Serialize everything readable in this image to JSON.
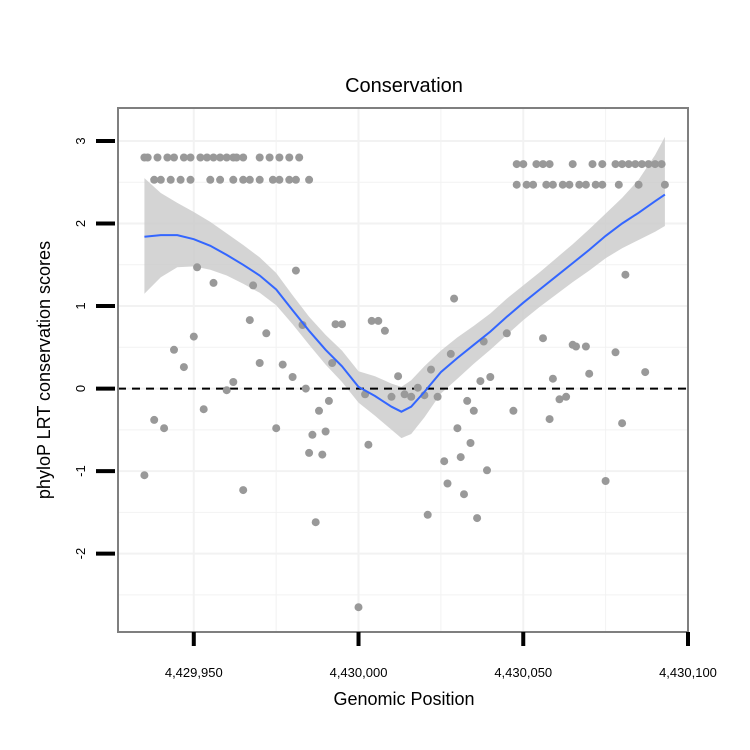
{
  "colors": {
    "points": "#999999",
    "smooth_line": "#3366ff",
    "confidence_band": "#cccccc",
    "reference_line": "#000000",
    "panel_border": "#7f7f7f",
    "grid": "#f2f2f2"
  },
  "chart_data": {
    "type": "scatter",
    "title": "Conservation",
    "xlabel": "Genomic Position",
    "ylabel": "phyloP LRT conservation scores",
    "xlim": [
      4429927,
      4430100
    ],
    "ylim": [
      -2.95,
      3.4
    ],
    "x_ticks": [
      4429950,
      4430000,
      4430050,
      4430100
    ],
    "x_tick_labels": [
      "4,429,950",
      "4,430,000",
      "4,430,050",
      "4,430,100"
    ],
    "y_ticks": [
      -2,
      -1,
      0,
      1,
      2,
      3
    ],
    "y_tick_labels": [
      "-2",
      "-1",
      "0",
      "1",
      "2",
      "3"
    ],
    "grid": true,
    "reference_line": {
      "y": 0,
      "style": "dashed"
    },
    "points": [
      [
        4429935,
        2.8
      ],
      [
        4429936,
        2.8
      ],
      [
        4429939,
        2.8
      ],
      [
        4429942,
        2.8
      ],
      [
        4429944,
        2.8
      ],
      [
        4429947,
        2.8
      ],
      [
        4429949,
        2.8
      ],
      [
        4429952,
        2.8
      ],
      [
        4429954,
        2.8
      ],
      [
        4429956,
        2.8
      ],
      [
        4429958,
        2.8
      ],
      [
        4429960,
        2.8
      ],
      [
        4429962,
        2.8
      ],
      [
        4429963,
        2.8
      ],
      [
        4429965,
        2.8
      ],
      [
        4429970,
        2.8
      ],
      [
        4429973,
        2.8
      ],
      [
        4429976,
        2.8
      ],
      [
        4429979,
        2.8
      ],
      [
        4429982,
        2.8
      ],
      [
        4429938,
        2.53
      ],
      [
        4429940,
        2.53
      ],
      [
        4429943,
        2.53
      ],
      [
        4429946,
        2.53
      ],
      [
        4429949,
        2.53
      ],
      [
        4429955,
        2.53
      ],
      [
        4429958,
        2.53
      ],
      [
        4429962,
        2.53
      ],
      [
        4429965,
        2.53
      ],
      [
        4429967,
        2.53
      ],
      [
        4429970,
        2.53
      ],
      [
        4429974,
        2.53
      ],
      [
        4429976,
        2.53
      ],
      [
        4429979,
        2.53
      ],
      [
        4429981,
        2.53
      ],
      [
        4429985,
        2.53
      ],
      [
        4430048,
        2.72
      ],
      [
        4430050,
        2.72
      ],
      [
        4430054,
        2.72
      ],
      [
        4430056,
        2.72
      ],
      [
        4430058,
        2.72
      ],
      [
        4430065,
        2.72
      ],
      [
        4430071,
        2.72
      ],
      [
        4430074,
        2.72
      ],
      [
        4430078,
        2.72
      ],
      [
        4430080,
        2.72
      ],
      [
        4430082,
        2.72
      ],
      [
        4430084,
        2.72
      ],
      [
        4430086,
        2.72
      ],
      [
        4430088,
        2.72
      ],
      [
        4430090,
        2.72
      ],
      [
        4430092,
        2.72
      ],
      [
        4430048,
        2.47
      ],
      [
        4430051,
        2.47
      ],
      [
        4430053,
        2.47
      ],
      [
        4430057,
        2.47
      ],
      [
        4430059,
        2.47
      ],
      [
        4430062,
        2.47
      ],
      [
        4430064,
        2.47
      ],
      [
        4430067,
        2.47
      ],
      [
        4430069,
        2.47
      ],
      [
        4430072,
        2.47
      ],
      [
        4430074,
        2.47
      ],
      [
        4430079,
        2.47
      ],
      [
        4430085,
        2.47
      ],
      [
        4430093,
        2.47
      ],
      [
        4429935,
        -1.05
      ],
      [
        4429938,
        -0.38
      ],
      [
        4429941,
        -0.48
      ],
      [
        4429944,
        0.47
      ],
      [
        4429947,
        0.26
      ],
      [
        4429950,
        0.63
      ],
      [
        4429951,
        1.47
      ],
      [
        4429953,
        -0.25
      ],
      [
        4429956,
        1.28
      ],
      [
        4429960,
        -0.02
      ],
      [
        4429962,
        0.08
      ],
      [
        4429965,
        -1.23
      ],
      [
        4429967,
        0.83
      ],
      [
        4429968,
        1.25
      ],
      [
        4429970,
        0.31
      ],
      [
        4429972,
        0.67
      ],
      [
        4429975,
        -0.48
      ],
      [
        4429977,
        0.29
      ],
      [
        4429980,
        0.14
      ],
      [
        4429981,
        1.43
      ],
      [
        4429983,
        0.77
      ],
      [
        4429984,
        0.0
      ],
      [
        4429985,
        -0.78
      ],
      [
        4429986,
        -0.56
      ],
      [
        4429987,
        -1.62
      ],
      [
        4429988,
        -0.27
      ],
      [
        4429989,
        -0.8
      ],
      [
        4429990,
        -0.52
      ],
      [
        4429991,
        -0.15
      ],
      [
        4429992,
        0.31
      ],
      [
        4429993,
        0.78
      ],
      [
        4429995,
        0.78
      ],
      [
        4430000,
        -2.65
      ],
      [
        4430002,
        -0.07
      ],
      [
        4430003,
        -0.68
      ],
      [
        4430004,
        0.82
      ],
      [
        4430006,
        0.82
      ],
      [
        4430008,
        0.7
      ],
      [
        4430010,
        -0.1
      ],
      [
        4430012,
        0.15
      ],
      [
        4430014,
        -0.07
      ],
      [
        4430016,
        -0.1
      ],
      [
        4430018,
        0.01
      ],
      [
        4430020,
        -0.08
      ],
      [
        4430021,
        -1.53
      ],
      [
        4430022,
        0.23
      ],
      [
        4430024,
        -0.1
      ],
      [
        4430026,
        -0.88
      ],
      [
        4430027,
        -1.15
      ],
      [
        4430028,
        0.42
      ],
      [
        4430029,
        1.09
      ],
      [
        4430030,
        -0.48
      ],
      [
        4430031,
        -0.83
      ],
      [
        4430032,
        -1.28
      ],
      [
        4430033,
        -0.15
      ],
      [
        4430034,
        -0.66
      ],
      [
        4430035,
        -0.27
      ],
      [
        4430036,
        -1.57
      ],
      [
        4430037,
        0.09
      ],
      [
        4430038,
        0.57
      ],
      [
        4430039,
        -0.99
      ],
      [
        4430040,
        0.14
      ],
      [
        4430045,
        0.67
      ],
      [
        4430047,
        -0.27
      ],
      [
        4430056,
        0.61
      ],
      [
        4430058,
        -0.37
      ],
      [
        4430059,
        0.12
      ],
      [
        4430061,
        -0.13
      ],
      [
        4430063,
        -0.1
      ],
      [
        4430065,
        0.53
      ],
      [
        4430066,
        0.51
      ],
      [
        4430069,
        0.51
      ],
      [
        4430070,
        0.18
      ],
      [
        4430075,
        -1.12
      ],
      [
        4430078,
        0.44
      ],
      [
        4430080,
        -0.42
      ],
      [
        4430081,
        1.38
      ],
      [
        4430087,
        0.2
      ]
    ],
    "smooth": {
      "x": [
        4429935,
        4429940,
        4429945,
        4429950,
        4429955,
        4429960,
        4429965,
        4429970,
        4429975,
        4429980,
        4429985,
        4429990,
        4429995,
        4430000,
        4430005,
        4430010,
        4430013,
        4430016,
        4430020,
        4430025,
        4430030,
        4430035,
        4430040,
        4430045,
        4430050,
        4430055,
        4430060,
        4430065,
        4430070,
        4430075,
        4430080,
        4430085,
        4430090,
        4430093
      ],
      "y": [
        1.84,
        1.86,
        1.86,
        1.81,
        1.73,
        1.62,
        1.5,
        1.37,
        1.2,
        0.95,
        0.7,
        0.47,
        0.27,
        0.02,
        -0.09,
        -0.22,
        -0.28,
        -0.22,
        -0.04,
        0.2,
        0.37,
        0.53,
        0.69,
        0.87,
        1.04,
        1.2,
        1.36,
        1.52,
        1.68,
        1.85,
        2.0,
        2.13,
        2.27,
        2.35
      ],
      "lower": [
        1.15,
        1.35,
        1.47,
        1.48,
        1.44,
        1.37,
        1.27,
        1.16,
        1.01,
        0.78,
        0.53,
        0.29,
        0.08,
        -0.17,
        -0.33,
        -0.5,
        -0.6,
        -0.55,
        -0.35,
        -0.06,
        0.12,
        0.3,
        0.47,
        0.65,
        0.83,
        0.99,
        1.14,
        1.29,
        1.43,
        1.58,
        1.7,
        1.8,
        1.9,
        1.97
      ],
      "upper": [
        2.55,
        2.37,
        2.25,
        2.14,
        2.02,
        1.88,
        1.74,
        1.59,
        1.4,
        1.13,
        0.87,
        0.65,
        0.46,
        0.21,
        0.15,
        0.06,
        0.02,
        0.1,
        0.27,
        0.46,
        0.62,
        0.76,
        0.91,
        1.09,
        1.25,
        1.41,
        1.58,
        1.75,
        1.93,
        2.12,
        2.31,
        2.53,
        2.83,
        3.05
      ]
    }
  }
}
